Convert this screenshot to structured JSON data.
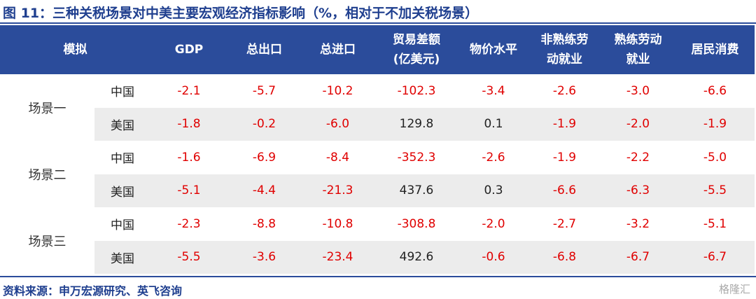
{
  "title": "图 11：三种关税场景对中美主要宏观经济指标影响（%，相对于不加关税场景）",
  "table": {
    "header": {
      "label": [
        "模拟"
      ],
      "columns": [
        [
          "GDP"
        ],
        [
          "总出口"
        ],
        [
          "总进口"
        ],
        [
          "贸易差额",
          "(亿美元)"
        ],
        [
          "物价水平"
        ],
        [
          "非熟练劳",
          "动就业"
        ],
        [
          "熟练劳动",
          "就业"
        ],
        [
          "居民消费"
        ]
      ]
    },
    "groups": [
      {
        "name": "场景一",
        "rows": [
          {
            "country": "中国",
            "values": [
              "-2.1",
              "-5.7",
              "-10.2",
              "-102.3",
              "-3.4",
              "-2.6",
              "-3.0",
              "-6.6"
            ]
          },
          {
            "country": "美国",
            "values": [
              "-1.8",
              "-0.2",
              "-6.0",
              "129.8",
              "0.1",
              "-1.9",
              "-2.0",
              "-1.9"
            ]
          }
        ]
      },
      {
        "name": "场景二",
        "rows": [
          {
            "country": "中国",
            "values": [
              "-1.6",
              "-6.9",
              "-8.4",
              "-352.3",
              "-2.6",
              "-1.9",
              "-2.2",
              "-5.0"
            ]
          },
          {
            "country": "美国",
            "values": [
              "-5.1",
              "-4.4",
              "-21.3",
              "437.6",
              "0.3",
              "-6.6",
              "-6.3",
              "-5.5"
            ]
          }
        ]
      },
      {
        "name": "场景三",
        "rows": [
          {
            "country": "中国",
            "values": [
              "-2.3",
              "-8.8",
              "-10.8",
              "-308.8",
              "-2.0",
              "-2.7",
              "-3.2",
              "-5.1"
            ]
          },
          {
            "country": "美国",
            "values": [
              "-5.5",
              "-3.6",
              "-23.4",
              "492.6",
              "-0.6",
              "-6.8",
              "-6.7",
              "-6.7"
            ]
          }
        ]
      }
    ]
  },
  "footer": {
    "source": "资料来源：申万宏源研究、英飞咨询",
    "watermark": "格隆汇"
  }
}
